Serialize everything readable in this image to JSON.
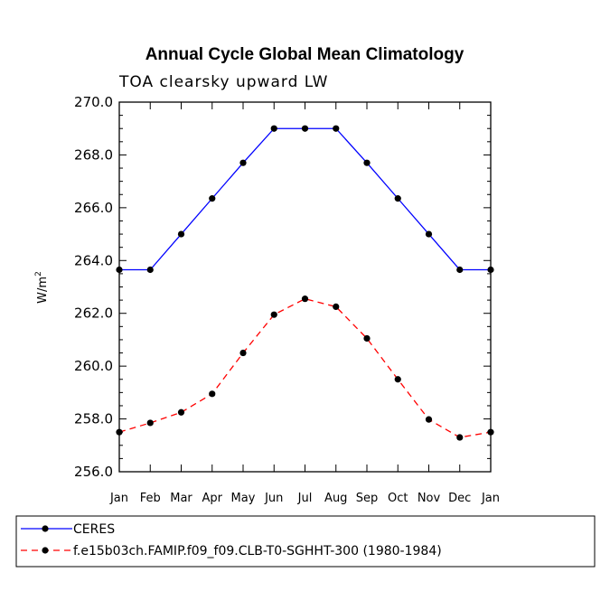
{
  "chart_data": {
    "type": "line",
    "title": "Annual Cycle Global Mean Climatology",
    "subtitle": "TOA clearsky upward LW",
    "ylabel_base": "W/m",
    "ylabel_sup": "2",
    "xlabel": "",
    "ylim": [
      256.0,
      270.0
    ],
    "yticks": [
      "256.0",
      "258.0",
      "260.0",
      "262.0",
      "264.0",
      "266.0",
      "268.0",
      "270.0"
    ],
    "categories": [
      "Jan",
      "Feb",
      "Mar",
      "Apr",
      "May",
      "Jun",
      "Jul",
      "Aug",
      "Sep",
      "Oct",
      "Nov",
      "Dec",
      "Jan"
    ],
    "series": [
      {
        "name": "CERES",
        "color": "#0000ff",
        "dash": "solid",
        "values": [
          263.65,
          263.65,
          265.0,
          266.35,
          267.7,
          269.0,
          269.0,
          269.0,
          267.7,
          266.35,
          265.0,
          263.65,
          263.65
        ]
      },
      {
        "name": "f.e15b03ch.FAMIP.f09_f09.CLB-T0-SGHHT-300 (1980-1984)",
        "color": "#ff0000",
        "dash": "dashed",
        "values": [
          257.5,
          257.85,
          258.25,
          258.95,
          260.5,
          261.95,
          262.55,
          262.25,
          261.05,
          259.5,
          257.98,
          257.3,
          257.5
        ]
      }
    ],
    "grid": false,
    "legend": "bottom-left"
  }
}
